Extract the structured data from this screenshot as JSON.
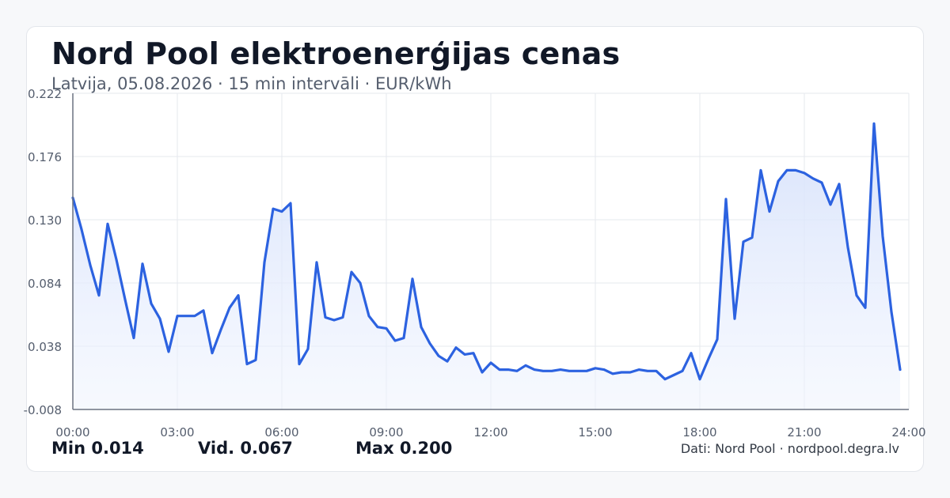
{
  "header": {
    "title": "Nord Pool elektroenerģijas cenas",
    "subtitle": "Latvija, 05.08.2026 · 15 min intervāli · EUR/kWh"
  },
  "footer": {
    "min_label": "Min 0.014",
    "avg_label": "Vid. 0.067",
    "max_label": "Max 0.200",
    "source": "Dati: Nord Pool · nordpool.degra.lv"
  },
  "colors": {
    "line": "#2c62e0",
    "fill": "#dbe5fb",
    "grid": "#e6e9ee",
    "axis": "#6b7280",
    "tick_text": "#555e6e"
  },
  "chart_data": {
    "type": "area",
    "x_unit": "hours",
    "xlim": [
      0,
      24
    ],
    "ylim": [
      -0.008,
      0.222
    ],
    "yticks": [
      -0.008,
      0.038,
      0.084,
      0.13,
      0.176,
      0.222
    ],
    "ytick_labels": [
      "-0.008",
      "0.038",
      "0.084",
      "0.130",
      "0.176",
      "0.222"
    ],
    "xticks": [
      0,
      3,
      6,
      9,
      12,
      15,
      18,
      21,
      24
    ],
    "xtick_labels": [
      "00:00",
      "03:00",
      "06:00",
      "09:00",
      "12:00",
      "15:00",
      "18:00",
      "21:00",
      "24:00"
    ],
    "grid": true,
    "series": [
      {
        "x": [
          0.0,
          0.25,
          0.5,
          0.75,
          1.0,
          1.25,
          1.5,
          1.75,
          2.0,
          2.25,
          2.5,
          2.75,
          3.0,
          3.25,
          3.5,
          3.75,
          4.0,
          4.25,
          4.5,
          4.75,
          5.0,
          5.25,
          5.5,
          5.75,
          6.0,
          6.25,
          6.5,
          6.75,
          7.0,
          7.25,
          7.5,
          7.75,
          8.0,
          8.25,
          8.5,
          8.75,
          9.0,
          9.25,
          9.5,
          9.75,
          10.0,
          10.25,
          10.5,
          10.75,
          11.0,
          11.25,
          11.5,
          11.75,
          12.0,
          12.25,
          12.5,
          12.75,
          13.0,
          13.25,
          13.5,
          13.75,
          14.0,
          14.25,
          14.5,
          14.75,
          15.0,
          15.25,
          15.5,
          15.75,
          16.0,
          16.25,
          16.5,
          16.75,
          17.0,
          17.25,
          17.5,
          17.75,
          18.0,
          18.25,
          18.5,
          18.75,
          19.0,
          19.25,
          19.5,
          19.75,
          20.0,
          20.25,
          20.5,
          20.75,
          21.0,
          21.25,
          21.5,
          21.75,
          22.0,
          22.25,
          22.5,
          22.75,
          23.0,
          23.25,
          23.5,
          23.75
        ],
        "values": [
          0.146,
          0.123,
          0.097,
          0.075,
          0.127,
          0.101,
          0.072,
          0.044,
          0.098,
          0.069,
          0.058,
          0.034,
          0.06,
          0.06,
          0.06,
          0.064,
          0.033,
          0.05,
          0.066,
          0.075,
          0.025,
          0.028,
          0.099,
          0.138,
          0.136,
          0.142,
          0.025,
          0.036,
          0.099,
          0.059,
          0.057,
          0.059,
          0.092,
          0.084,
          0.06,
          0.052,
          0.051,
          0.042,
          0.044,
          0.087,
          0.052,
          0.04,
          0.031,
          0.027,
          0.037,
          0.032,
          0.033,
          0.019,
          0.026,
          0.021,
          0.021,
          0.02,
          0.024,
          0.021,
          0.02,
          0.02,
          0.021,
          0.02,
          0.02,
          0.02,
          0.022,
          0.021,
          0.018,
          0.019,
          0.019,
          0.021,
          0.02,
          0.02,
          0.014,
          0.017,
          0.02,
          0.033,
          0.014,
          0.029,
          0.043,
          0.145,
          0.058,
          0.114,
          0.117,
          0.166,
          0.136,
          0.158,
          0.166,
          0.166,
          0.164,
          0.16,
          0.157,
          0.141,
          0.156,
          0.11,
          0.075,
          0.066,
          0.2,
          0.118,
          0.063,
          0.021
        ]
      }
    ]
  }
}
